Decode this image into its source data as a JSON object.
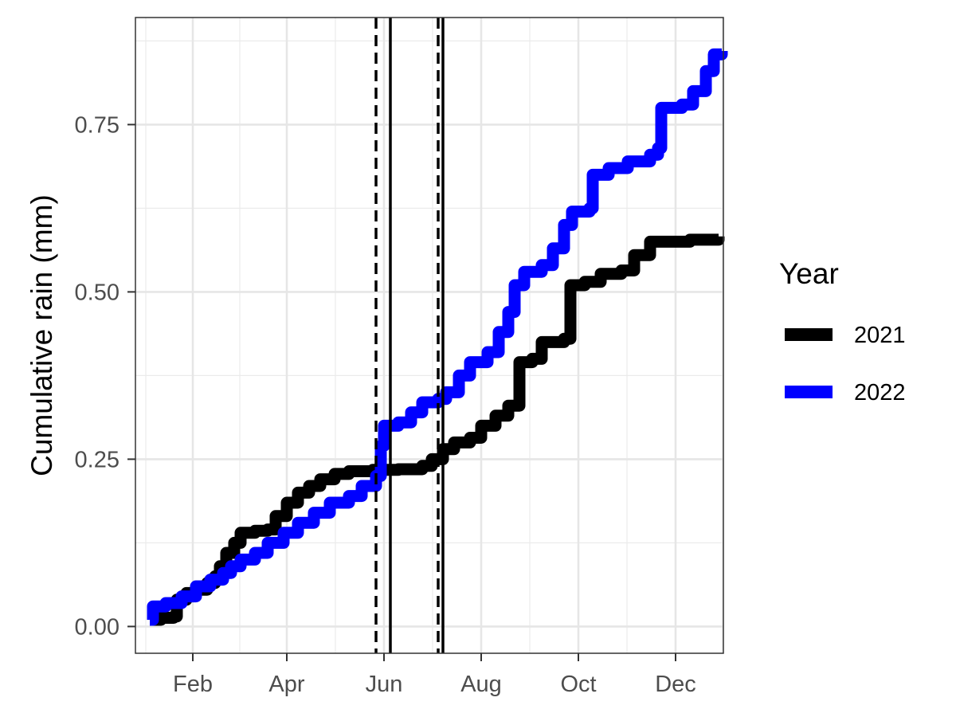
{
  "chart_data": {
    "type": "line",
    "title": "",
    "xlabel": "",
    "ylabel": "Cumulative rain (mm)",
    "x_axis": {
      "type": "date",
      "range": [
        "2021-12-27",
        "2022-12-31"
      ],
      "ticks": [
        {
          "date": "2022-02-01",
          "label": "Feb"
        },
        {
          "date": "2022-04-01",
          "label": "Apr"
        },
        {
          "date": "2022-06-01",
          "label": "Jun"
        },
        {
          "date": "2022-08-01",
          "label": "Aug"
        },
        {
          "date": "2022-10-01",
          "label": "Oct"
        },
        {
          "date": "2022-12-01",
          "label": "Dec"
        }
      ]
    },
    "y_axis": {
      "range": [
        -0.04,
        0.91
      ],
      "ticks": [
        0,
        0.25,
        0.5,
        0.75
      ],
      "tick_labels": [
        "0.00",
        "0.25",
        "0.50",
        "0.75"
      ]
    },
    "grid": true,
    "legend": {
      "title": "Year",
      "position": "right"
    },
    "series": [
      {
        "name": "2021",
        "color": "#000000",
        "points": [
          [
            "2022-01-05",
            0.01
          ],
          [
            "2022-01-12",
            0.013
          ],
          [
            "2022-01-20",
            0.015
          ],
          [
            "2022-01-22",
            0.04
          ],
          [
            "2022-01-28",
            0.05
          ],
          [
            "2022-02-03",
            0.055
          ],
          [
            "2022-02-10",
            0.065
          ],
          [
            "2022-02-15",
            0.075
          ],
          [
            "2022-02-18",
            0.09
          ],
          [
            "2022-02-22",
            0.11
          ],
          [
            "2022-02-27",
            0.125
          ],
          [
            "2022-03-03",
            0.14
          ],
          [
            "2022-03-12",
            0.143
          ],
          [
            "2022-03-20",
            0.145
          ],
          [
            "2022-03-25",
            0.165
          ],
          [
            "2022-04-01",
            0.185
          ],
          [
            "2022-04-08",
            0.2
          ],
          [
            "2022-04-15",
            0.21
          ],
          [
            "2022-04-22",
            0.22
          ],
          [
            "2022-05-01",
            0.228
          ],
          [
            "2022-05-10",
            0.232
          ],
          [
            "2022-05-25",
            0.234
          ],
          [
            "2022-06-10",
            0.235
          ],
          [
            "2022-06-25",
            0.24
          ],
          [
            "2022-07-01",
            0.25
          ],
          [
            "2022-07-08",
            0.265
          ],
          [
            "2022-07-15",
            0.275
          ],
          [
            "2022-07-25",
            0.282
          ],
          [
            "2022-08-01",
            0.3
          ],
          [
            "2022-08-10",
            0.315
          ],
          [
            "2022-08-18",
            0.33
          ],
          [
            "2022-08-25",
            0.395
          ],
          [
            "2022-09-02",
            0.4
          ],
          [
            "2022-09-08",
            0.425
          ],
          [
            "2022-09-22",
            0.43
          ],
          [
            "2022-09-26",
            0.51
          ],
          [
            "2022-10-05",
            0.515
          ],
          [
            "2022-10-15",
            0.527
          ],
          [
            "2022-10-28",
            0.532
          ],
          [
            "2022-11-05",
            0.555
          ],
          [
            "2022-11-15",
            0.575
          ],
          [
            "2022-12-10",
            0.578
          ],
          [
            "2022-12-28",
            0.583
          ]
        ]
      },
      {
        "name": "2022",
        "color": "#0000ff",
        "points": [
          [
            "2022-01-05",
            0.01
          ],
          [
            "2022-01-07",
            0.03
          ],
          [
            "2022-01-15",
            0.035
          ],
          [
            "2022-01-25",
            0.045
          ],
          [
            "2022-02-03",
            0.06
          ],
          [
            "2022-02-12",
            0.07
          ],
          [
            "2022-02-20",
            0.08
          ],
          [
            "2022-02-25",
            0.09
          ],
          [
            "2022-03-03",
            0.1
          ],
          [
            "2022-03-12",
            0.11
          ],
          [
            "2022-03-20",
            0.125
          ],
          [
            "2022-03-30",
            0.14
          ],
          [
            "2022-04-08",
            0.155
          ],
          [
            "2022-04-18",
            0.17
          ],
          [
            "2022-04-28",
            0.185
          ],
          [
            "2022-05-10",
            0.195
          ],
          [
            "2022-05-18",
            0.21
          ],
          [
            "2022-05-27",
            0.225
          ],
          [
            "2022-05-30",
            0.27
          ],
          [
            "2022-06-01",
            0.3
          ],
          [
            "2022-06-10",
            0.305
          ],
          [
            "2022-06-18",
            0.32
          ],
          [
            "2022-06-25",
            0.335
          ],
          [
            "2022-07-05",
            0.34
          ],
          [
            "2022-07-10",
            0.35
          ],
          [
            "2022-07-18",
            0.375
          ],
          [
            "2022-07-25",
            0.395
          ],
          [
            "2022-08-05",
            0.41
          ],
          [
            "2022-08-12",
            0.44
          ],
          [
            "2022-08-18",
            0.47
          ],
          [
            "2022-08-22",
            0.51
          ],
          [
            "2022-08-28",
            0.53
          ],
          [
            "2022-09-08",
            0.54
          ],
          [
            "2022-09-15",
            0.565
          ],
          [
            "2022-09-22",
            0.6
          ],
          [
            "2022-09-27",
            0.62
          ],
          [
            "2022-10-08",
            0.625
          ],
          [
            "2022-10-10",
            0.675
          ],
          [
            "2022-10-20",
            0.685
          ],
          [
            "2022-11-01",
            0.695
          ],
          [
            "2022-11-15",
            0.705
          ],
          [
            "2022-11-20",
            0.715
          ],
          [
            "2022-11-22",
            0.775
          ],
          [
            "2022-12-05",
            0.78
          ],
          [
            "2022-12-12",
            0.8
          ],
          [
            "2022-12-20",
            0.83
          ],
          [
            "2022-12-25",
            0.855
          ],
          [
            "2022-12-30",
            0.86
          ]
        ]
      }
    ],
    "reference_lines": [
      {
        "date": "2022-05-27",
        "style": "dashed",
        "color": "#000000"
      },
      {
        "date": "2022-06-05",
        "style": "solid",
        "color": "#000000"
      },
      {
        "date": "2022-07-05",
        "style": "dashed",
        "color": "#000000"
      },
      {
        "date": "2022-07-08",
        "style": "solid",
        "color": "#000000"
      }
    ]
  }
}
